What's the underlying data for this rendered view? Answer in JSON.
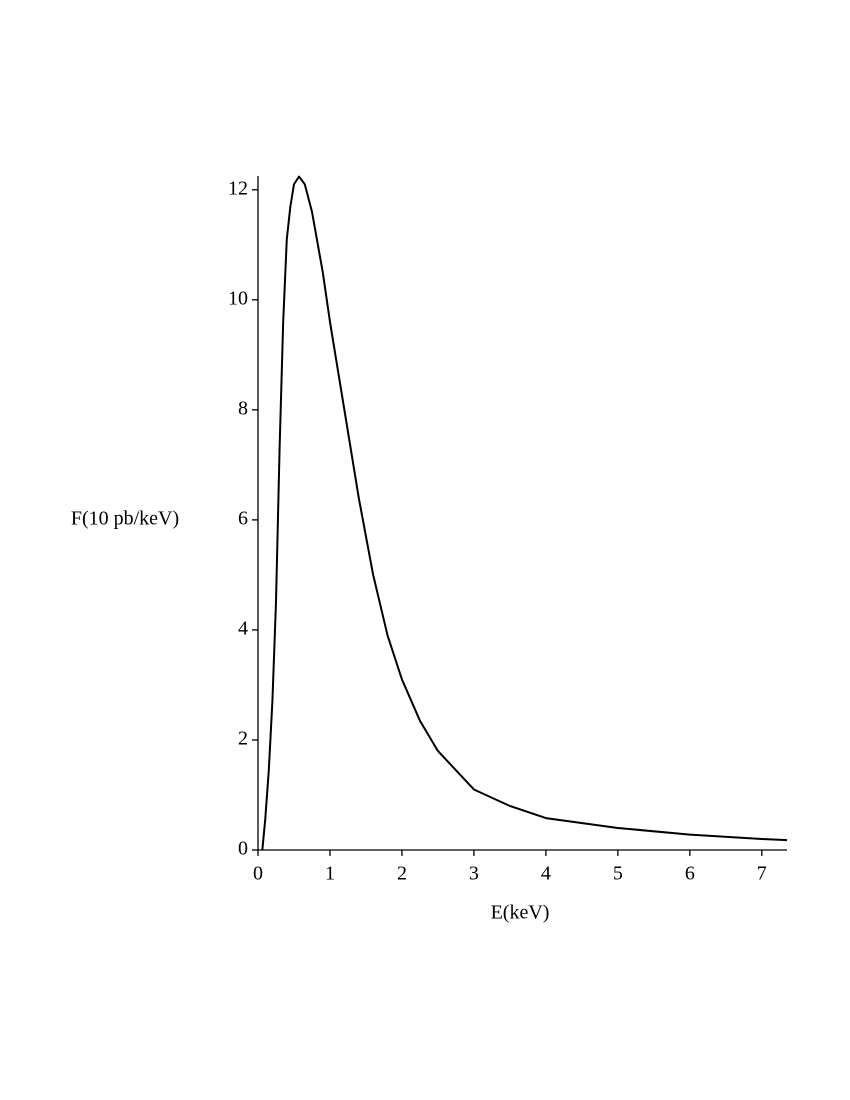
{
  "chart_data": {
    "type": "line",
    "x_label": "E(keV)",
    "y_label": "F(10 pb/keV)",
    "x": [
      0.06,
      0.1,
      0.15,
      0.2,
      0.25,
      0.3,
      0.35,
      0.4,
      0.45,
      0.5,
      0.57,
      0.65,
      0.75,
      0.9,
      1.0,
      1.2,
      1.4,
      1.6,
      1.8,
      2.0,
      2.25,
      2.5,
      3.0,
      3.5,
      4.0,
      5.0,
      6.0,
      7.0,
      7.35
    ],
    "series": [
      {
        "color": "#000000",
        "values": [
          0,
          0.55,
          1.45,
          2.7,
          4.5,
          7.3,
          9.6,
          11.1,
          11.7,
          12.1,
          12.24,
          12.1,
          11.6,
          10.5,
          9.6,
          8.0,
          6.4,
          5.0,
          3.9,
          3.1,
          2.35,
          1.8,
          1.1,
          0.8,
          0.58,
          0.4,
          0.28,
          0.2,
          0.18
        ]
      }
    ],
    "xlim": [
      0,
      7.35
    ],
    "ylim": [
      0,
      12.25
    ],
    "xticks": [
      0,
      1,
      2,
      3,
      4,
      5,
      6,
      7
    ],
    "yticks": [
      0,
      2,
      4,
      6,
      8,
      10,
      12
    ]
  }
}
